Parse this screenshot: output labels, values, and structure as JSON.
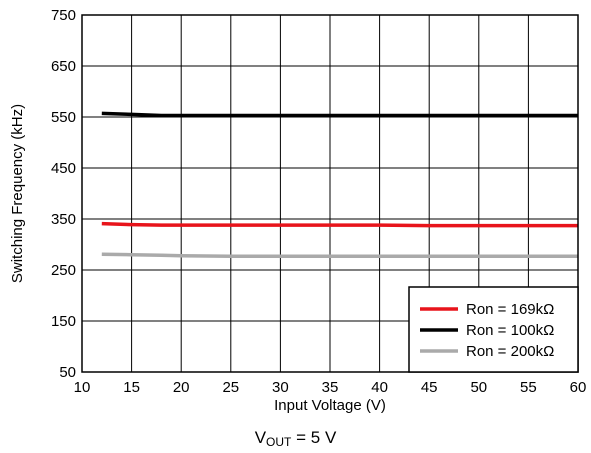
{
  "chart_data": {
    "type": "line",
    "xlabel": "Input Voltage  (V)",
    "ylabel": "Switching Frequency (kHz)",
    "xlim": [
      10,
      60
    ],
    "ylim": [
      50,
      750
    ],
    "xticks": [
      10,
      15,
      20,
      25,
      30,
      35,
      40,
      45,
      50,
      55,
      60
    ],
    "yticks": [
      50,
      150,
      250,
      350,
      450,
      550,
      650,
      750
    ],
    "grid": true,
    "legend_position": "bottom-right",
    "series": [
      {
        "name": "Ron = 169kΩ",
        "color": "#e8141b",
        "x": [
          12,
          15,
          18,
          20,
          25,
          30,
          35,
          40,
          45,
          50,
          55,
          60
        ],
        "y": [
          341,
          339,
          338,
          338,
          338,
          338,
          338,
          338,
          337,
          337,
          337,
          337
        ]
      },
      {
        "name": "Ron = 100kΩ",
        "color": "#000000",
        "x": [
          12,
          15,
          18,
          20,
          25,
          30,
          35,
          40,
          45,
          50,
          55,
          60
        ],
        "y": [
          557,
          555,
          553,
          553,
          553,
          553,
          553,
          553,
          553,
          553,
          553,
          553
        ]
      },
      {
        "name": "Ron = 200kΩ",
        "color": "#aaaaaa",
        "x": [
          12,
          15,
          18,
          20,
          25,
          30,
          35,
          40,
          45,
          50,
          55,
          60
        ],
        "y": [
          281,
          280,
          279,
          278,
          277,
          277,
          277,
          277,
          277,
          277,
          277,
          277
        ]
      }
    ]
  },
  "caption": {
    "v": "V",
    "sub": "OUT",
    "rest": " = 5 V"
  }
}
